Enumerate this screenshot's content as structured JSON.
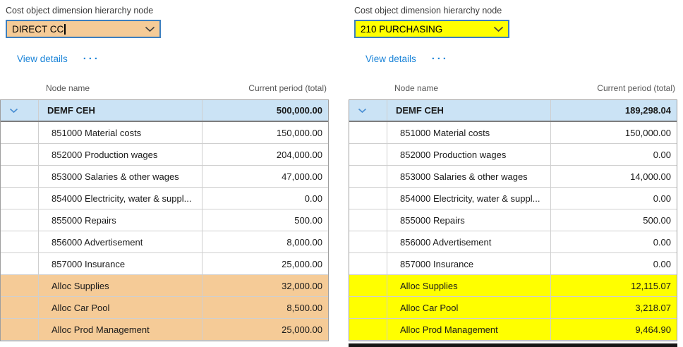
{
  "colors": {
    "orange_highlight": "#F5CB97",
    "yellow_highlight": "#FFFF00",
    "selected_row_blue": "#CBE3F5",
    "combo_border_blue": "#3C7FC0",
    "link_blue": "#1B84D8",
    "row_chevron_blue": "#4A8FD3",
    "bottom_bar_black": "#161616"
  },
  "panels": [
    {
      "field_label": "Cost object dimension hierarchy node",
      "combo": {
        "value": "DIRECT CC",
        "highlight": "#F5CB97",
        "caret": true
      },
      "actions": {
        "view_details": "View details",
        "more_options": "···"
      },
      "table": {
        "columns": {
          "name": "Node name",
          "amount": "Current period (total)"
        },
        "rows": [
          {
            "name": "DEMF CEH",
            "value": "500,000.00",
            "level": 0,
            "selected": true,
            "highlight": null
          },
          {
            "name": "851000 Material costs",
            "value": "150,000.00",
            "level": 1,
            "selected": false,
            "highlight": null
          },
          {
            "name": "852000 Production wages",
            "value": "204,000.00",
            "level": 1,
            "selected": false,
            "highlight": null
          },
          {
            "name": "853000 Salaries & other wages",
            "value": "47,000.00",
            "level": 1,
            "selected": false,
            "highlight": null
          },
          {
            "name": "854000 Electricity, water & suppl...",
            "value": "0.00",
            "level": 1,
            "selected": false,
            "highlight": null
          },
          {
            "name": "855000 Repairs",
            "value": "500.00",
            "level": 1,
            "selected": false,
            "highlight": null
          },
          {
            "name": "856000 Advertisement",
            "value": "8,000.00",
            "level": 1,
            "selected": false,
            "highlight": null
          },
          {
            "name": "857000 Insurance",
            "value": "25,000.00",
            "level": 1,
            "selected": false,
            "highlight": null
          },
          {
            "name": "Alloc Supplies",
            "value": "32,000.00",
            "level": 1,
            "selected": false,
            "highlight": "#F5CB97"
          },
          {
            "name": "Alloc Car Pool",
            "value": "8,500.00",
            "level": 1,
            "selected": false,
            "highlight": "#F5CB97"
          },
          {
            "name": "Alloc Prod Management",
            "value": "25,000.00",
            "level": 1,
            "selected": false,
            "highlight": "#F5CB97"
          }
        ]
      },
      "bottom_bar": false
    },
    {
      "field_label": "Cost object dimension hierarchy node",
      "combo": {
        "value": "210 PURCHASING",
        "highlight": "#FFFF00",
        "caret": false
      },
      "actions": {
        "view_details": "View details",
        "more_options": "···"
      },
      "table": {
        "columns": {
          "name": "Node name",
          "amount": "Current period (total)"
        },
        "rows": [
          {
            "name": "DEMF CEH",
            "value": "189,298.04",
            "level": 0,
            "selected": true,
            "highlight": null
          },
          {
            "name": "851000 Material costs",
            "value": "150,000.00",
            "level": 1,
            "selected": false,
            "highlight": null
          },
          {
            "name": "852000 Production wages",
            "value": "0.00",
            "level": 1,
            "selected": false,
            "highlight": null
          },
          {
            "name": "853000 Salaries & other wages",
            "value": "14,000.00",
            "level": 1,
            "selected": false,
            "highlight": null
          },
          {
            "name": "854000 Electricity, water & suppl...",
            "value": "0.00",
            "level": 1,
            "selected": false,
            "highlight": null
          },
          {
            "name": "855000 Repairs",
            "value": "500.00",
            "level": 1,
            "selected": false,
            "highlight": null
          },
          {
            "name": "856000 Advertisement",
            "value": "0.00",
            "level": 1,
            "selected": false,
            "highlight": null
          },
          {
            "name": "857000 Insurance",
            "value": "0.00",
            "level": 1,
            "selected": false,
            "highlight": null
          },
          {
            "name": "Alloc Supplies",
            "value": "12,115.07",
            "level": 1,
            "selected": false,
            "highlight": "#FFFF00"
          },
          {
            "name": "Alloc Car Pool",
            "value": "3,218.07",
            "level": 1,
            "selected": false,
            "highlight": "#FFFF00"
          },
          {
            "name": "Alloc Prod Management",
            "value": "9,464.90",
            "level": 1,
            "selected": false,
            "highlight": "#FFFF00"
          }
        ]
      },
      "bottom_bar": true
    }
  ]
}
